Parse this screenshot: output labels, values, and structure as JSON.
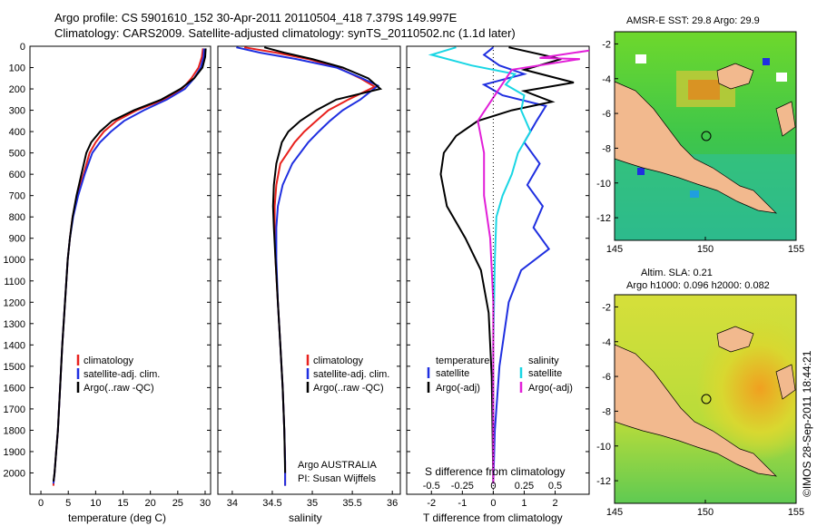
{
  "figure": {
    "title_line1": "Argo profile: CS 5901610_152 30-Apr-2011 20110504_418 7.379S 149.997E",
    "title_line2": "Climatology: CARS2009. Satellite-adjusted climatology: synTS_20110502.nc (1.1d later)",
    "credit": "Argo AUSTRALIA",
    "pi": "PI: Susan Wijffels",
    "timestamp": "©IMOS 28-Sep-2011 18:44:21"
  },
  "colors": {
    "climatology": "#e8221e",
    "satellite": "#1f2fe0",
    "argo": "#000000",
    "satellite_s": "#19d6e4",
    "argo_s": "#e21fd8",
    "land": "#f2b98e"
  },
  "chart_data": [
    {
      "type": "line",
      "panel": "temperature",
      "xlabel": "temperature (deg C)",
      "xticks": [
        "0",
        "5",
        "10",
        "15",
        "20",
        "25",
        "30"
      ],
      "xlim": [
        -2,
        31
      ],
      "ylim": [
        2100,
        0
      ],
      "yticks": [
        "0",
        "100",
        "200",
        "300",
        "400",
        "500",
        "600",
        "700",
        "800",
        "900",
        "1000",
        "1100",
        "1200",
        "1300",
        "1400",
        "1500",
        "1600",
        "1700",
        "1800",
        "1900",
        "2000"
      ],
      "legend": [
        "climatology",
        "satellite-adj. clim.",
        "Argo(..raw -QC)"
      ],
      "series": [
        {
          "name": "climatology",
          "color": "climatology",
          "x": [
            29.6,
            29.4,
            28.8,
            27.5,
            25.8,
            22.5,
            17.5,
            13.8,
            11.5,
            10.0,
            8.9,
            7.8,
            6.6,
            5.8,
            5.3,
            4.9,
            4.4,
            3.9,
            3.5,
            3.1,
            2.8,
            2.5,
            2.3,
            2.3
          ],
          "y": [
            10,
            50,
            100,
            150,
            200,
            250,
            300,
            350,
            400,
            450,
            500,
            600,
            700,
            800,
            900,
            1000,
            1200,
            1400,
            1600,
            1800,
            1900,
            2000,
            2050,
            2060
          ]
        },
        {
          "name": "satellite-adj. clim.",
          "color": "satellite",
          "x": [
            29.8,
            29.7,
            29.2,
            28.0,
            26.3,
            23.0,
            18.8,
            15.2,
            12.8,
            10.8,
            9.4,
            8.0,
            6.8,
            5.9,
            5.3,
            4.9,
            4.4,
            3.9,
            3.5,
            3.1,
            2.8,
            2.5,
            2.3
          ],
          "y": [
            10,
            50,
            100,
            150,
            200,
            250,
            300,
            350,
            400,
            450,
            500,
            600,
            700,
            800,
            900,
            1000,
            1200,
            1400,
            1600,
            1800,
            1900,
            2000,
            2050
          ]
        },
        {
          "name": "Argo(..raw -QC)",
          "color": "argo",
          "x": [
            30.1,
            30.0,
            29.5,
            28.0,
            25.5,
            22.0,
            17.0,
            13.0,
            10.8,
            9.2,
            8.3,
            7.4,
            6.5,
            5.8,
            5.3,
            4.9,
            4.4,
            3.9,
            3.5,
            3.1,
            2.8,
            2.5,
            2.3
          ],
          "y": [
            10,
            50,
            100,
            150,
            200,
            250,
            300,
            350,
            400,
            450,
            500,
            600,
            700,
            800,
            900,
            1000,
            1200,
            1400,
            1600,
            1800,
            1900,
            2000,
            2040
          ]
        }
      ]
    },
    {
      "type": "line",
      "panel": "salinity",
      "xlabel": "salinity",
      "xticks": [
        "34",
        "34.5",
        "35",
        "35.5",
        "36"
      ],
      "xlim": [
        33.82,
        36.1
      ],
      "ylim": [
        2100,
        0
      ],
      "legend": [
        "climatology",
        "satellite-adj. clim.",
        "Argo(..raw -QC)"
      ],
      "series": [
        {
          "name": "climatology",
          "color": "climatology",
          "x": [
            34.15,
            34.55,
            34.95,
            35.32,
            35.6,
            35.78,
            35.45,
            35.2,
            35.05,
            34.9,
            34.78,
            34.6,
            34.55,
            34.53,
            34.53,
            34.54,
            34.57,
            34.6,
            34.63,
            34.65,
            34.66,
            34.66
          ],
          "y": [
            5,
            30,
            60,
            100,
            150,
            190,
            250,
            300,
            350,
            400,
            450,
            550,
            650,
            750,
            850,
            1000,
            1200,
            1400,
            1600,
            1800,
            1950,
            2060
          ]
        },
        {
          "name": "satellite-adj. clim.",
          "color": "satellite",
          "x": [
            34.05,
            34.35,
            34.8,
            35.3,
            35.62,
            35.82,
            35.6,
            35.38,
            35.22,
            35.08,
            34.95,
            34.75,
            34.63,
            34.57,
            34.55,
            34.55,
            34.57,
            34.6,
            34.63,
            34.65,
            34.66,
            34.66
          ],
          "y": [
            5,
            30,
            60,
            100,
            150,
            185,
            250,
            300,
            350,
            400,
            450,
            550,
            650,
            750,
            850,
            1000,
            1200,
            1400,
            1600,
            1800,
            1950,
            2060
          ]
        },
        {
          "name": "Argo(..raw -QC)",
          "color": "argo",
          "x": [
            34.4,
            34.65,
            35.0,
            35.38,
            35.7,
            35.85,
            35.3,
            35.05,
            34.85,
            34.7,
            34.62,
            34.55,
            34.52,
            34.51,
            34.52,
            34.54,
            34.57,
            34.6,
            34.63,
            34.65,
            34.66
          ],
          "y": [
            5,
            30,
            60,
            100,
            150,
            200,
            250,
            300,
            350,
            400,
            450,
            550,
            650,
            750,
            850,
            1000,
            1200,
            1400,
            1600,
            1800,
            2000
          ]
        }
      ]
    },
    {
      "type": "line",
      "panel": "difference",
      "xlabel_top": "S difference from climatology",
      "xticks_s": [
        "-0.5",
        "-0.25",
        "0",
        "0.25",
        "0.5"
      ],
      "xlabel": "T difference from climatology",
      "xticks_t": [
        "-2",
        "-1",
        "0",
        "1",
        "2"
      ],
      "xlim": [
        -2.8,
        3.1
      ],
      "ylim": [
        2100,
        0
      ],
      "legend_left_title": "temperature",
      "legend_left": [
        "satellite",
        "Argo(-adj)"
      ],
      "legend_right_title": "salinity",
      "legend_right": [
        "satellite",
        "Argo(-adj)"
      ],
      "series": [
        {
          "name": "temperature satellite",
          "color": "satellite",
          "x": [
            0.0,
            -0.3,
            0.2,
            1.0,
            -0.3,
            0.3,
            1.7,
            1.4,
            1.0,
            1.5,
            1.1,
            1.6,
            1.3,
            1.8,
            0.9,
            0.5,
            0.2,
            0.05,
            0.0
          ],
          "y": [
            5,
            40,
            90,
            130,
            180,
            230,
            280,
            350,
            450,
            550,
            650,
            750,
            850,
            950,
            1050,
            1200,
            1500,
            1800,
            2050
          ]
        },
        {
          "name": "temperature Argo(-adj)",
          "color": "argo",
          "x": [
            0.5,
            2.2,
            1.0,
            2.6,
            1.0,
            1.9,
            0.6,
            -0.5,
            -1.2,
            -1.6,
            -1.7,
            -1.5,
            -0.9,
            -0.4,
            -0.15,
            -0.05,
            0.0
          ],
          "y": [
            5,
            60,
            110,
            170,
            210,
            260,
            300,
            350,
            420,
            500,
            600,
            750,
            900,
            1050,
            1250,
            1550,
            2050
          ]
        },
        {
          "name": "salinity satellite",
          "color": "satellite_s",
          "x": [
            -1.2,
            -2.0,
            -0.7,
            0.7,
            0.4,
            1.0,
            0.9,
            1.2,
            0.8,
            0.6,
            0.3,
            0.1,
            0.05,
            0.0,
            0.0
          ],
          "y": [
            5,
            40,
            90,
            130,
            180,
            230,
            300,
            400,
            500,
            600,
            700,
            800,
            1000,
            1400,
            2050
          ]
        },
        {
          "name": "salinity Argo(-adj)",
          "color": "argo_s",
          "x": [
            3.1,
            1.5,
            2.8,
            0.6,
            -0.5,
            -0.3,
            -0.3,
            -0.1,
            0.0,
            0.0
          ],
          "y": [
            20,
            55,
            60,
            110,
            350,
            500,
            700,
            900,
            1200,
            2050
          ]
        }
      ]
    }
  ],
  "maps": [
    {
      "title": "AMSR-E SST: 29.8 Argo: 29.9",
      "xticks": [
        "145",
        "150",
        "155"
      ],
      "yticks": [
        "-2",
        "-4",
        "-6",
        "-8",
        "-10",
        "-12"
      ]
    },
    {
      "title_line1": "Altim. SLA: 0.21",
      "title_line2": "Argo h1000: 0.096 h2000: 0.082",
      "xticks": [
        "145",
        "150",
        "155"
      ],
      "yticks": [
        "-2",
        "-4",
        "-6",
        "-8",
        "-10",
        "-12"
      ]
    }
  ]
}
